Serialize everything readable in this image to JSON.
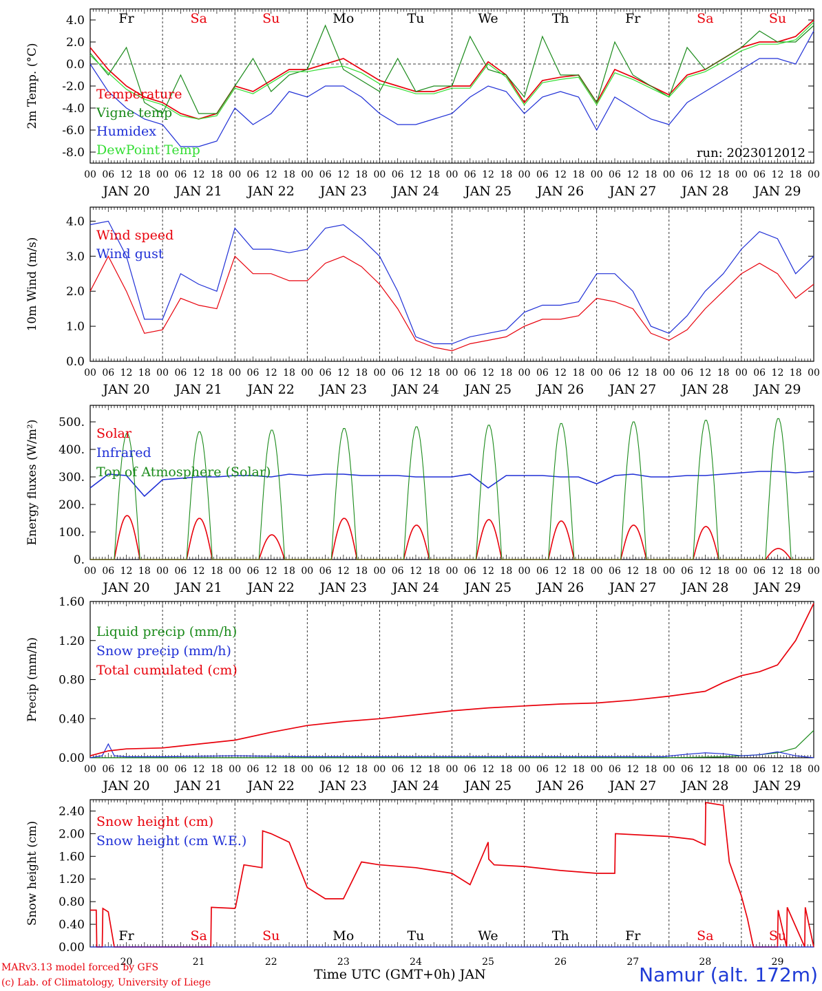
{
  "footer": {
    "model_line": "MARv3.13 model forced by GFS",
    "lab_line": "(c) Lab. of Climatology, University of Liege",
    "x_axis_label": "Time UTC (GMT+0h) JAN",
    "station": "Namur (alt. 172m)"
  },
  "colors": {
    "red": "#e8000b",
    "blue": "#1f2fd6",
    "green": "#1a8a1a",
    "lightgreen": "#33dd33",
    "sa_su": "#e8000b",
    "weekday": "#000000"
  },
  "chart_data": [
    {
      "type": "line",
      "ylabel": "2m Temp. (°C)",
      "y_ticks": [
        "-8.0",
        "-6.0",
        "-4.0",
        "-2.0",
        "0.0",
        "2.0",
        "4.0"
      ],
      "ylim": [
        -9.0,
        5.0
      ],
      "run_label": "run: 2023012012",
      "top_day_labels": [
        "Fr",
        "Sa",
        "Su",
        "Mo",
        "Tu",
        "We",
        "Th",
        "Fr",
        "Sa",
        "Su"
      ],
      "x_hour_ticks": [
        "00",
        "06",
        "12",
        "18"
      ],
      "x_date_labels": [
        "JAN 20",
        "JAN 21",
        "JAN 22",
        "JAN 23",
        "JAN 24",
        "JAN 25",
        "JAN 26",
        "JAN 27",
        "JAN 28",
        "JAN 29"
      ],
      "series": [
        {
          "name": "Temperature",
          "color": "#e8000b",
          "x": [
            0,
            6,
            12,
            18,
            24,
            30,
            36,
            42,
            48,
            54,
            60,
            66,
            72,
            78,
            84,
            90,
            96,
            102,
            108,
            114,
            120,
            126,
            132,
            138,
            144,
            150,
            156,
            162,
            168,
            174,
            180,
            186,
            192,
            198,
            204,
            210,
            216,
            222,
            228,
            234,
            240
          ],
          "values": [
            1.5,
            -0.5,
            -2.0,
            -3.0,
            -3.5,
            -4.5,
            -5.0,
            -4.5,
            -2.0,
            -2.5,
            -1.5,
            -0.5,
            -0.5,
            0.0,
            0.5,
            -0.5,
            -1.5,
            -2.0,
            -2.5,
            -2.5,
            -2.0,
            -2.0,
            0.2,
            -1.0,
            -3.5,
            -1.5,
            -1.2,
            -1.0,
            -3.5,
            -0.5,
            -1.2,
            -2.0,
            -2.8,
            -1.0,
            -0.5,
            0.5,
            1.5,
            2.0,
            2.0,
            2.5,
            4.0
          ]
        },
        {
          "name": "Vigne temp",
          "color": "#1a8a1a",
          "x": [
            0,
            6,
            12,
            18,
            24,
            30,
            36,
            42,
            48,
            54,
            60,
            66,
            72,
            78,
            84,
            90,
            96,
            102,
            108,
            114,
            120,
            126,
            132,
            138,
            144,
            150,
            156,
            162,
            168,
            174,
            180,
            186,
            192,
            198,
            204,
            210,
            216,
            222,
            228,
            234,
            240
          ],
          "values": [
            1.0,
            -1.0,
            1.5,
            -3.5,
            -4.5,
            -1.0,
            -4.5,
            -4.5,
            -2.0,
            0.5,
            -2.5,
            -1.0,
            -0.5,
            3.5,
            -0.5,
            -1.5,
            -2.5,
            0.5,
            -2.5,
            -2.0,
            -2.0,
            2.5,
            -0.5,
            -1.0,
            -3.0,
            2.5,
            -1.0,
            -1.0,
            -3.5,
            2.0,
            -1.0,
            -2.0,
            -3.0,
            1.5,
            -0.5,
            0.5,
            1.5,
            3.0,
            2.0,
            2.0,
            3.5
          ]
        },
        {
          "name": "Humidex",
          "color": "#1f2fd6",
          "x": [
            0,
            6,
            12,
            18,
            24,
            30,
            36,
            42,
            48,
            54,
            60,
            66,
            72,
            78,
            84,
            90,
            96,
            102,
            108,
            114,
            120,
            126,
            132,
            138,
            144,
            150,
            156,
            162,
            168,
            174,
            180,
            186,
            192,
            198,
            204,
            210,
            216,
            222,
            228,
            234,
            240
          ],
          "values": [
            0.0,
            -2.5,
            -4.0,
            -5.0,
            -5.5,
            -7.5,
            -7.5,
            -7.0,
            -4.0,
            -5.5,
            -4.5,
            -2.5,
            -3.0,
            -2.0,
            -2.0,
            -3.0,
            -4.5,
            -5.5,
            -5.5,
            -5.0,
            -4.5,
            -3.0,
            -2.0,
            -2.5,
            -4.5,
            -3.0,
            -2.5,
            -3.0,
            -6.0,
            -3.0,
            -4.0,
            -5.0,
            -5.5,
            -3.5,
            -2.5,
            -1.5,
            -0.5,
            0.5,
            0.5,
            0.0,
            3.0
          ]
        },
        {
          "name": "DewPoint Temp",
          "color": "#33dd33",
          "x": [
            0,
            6,
            12,
            18,
            24,
            30,
            36,
            42,
            48,
            54,
            60,
            66,
            72,
            78,
            84,
            90,
            96,
            102,
            108,
            114,
            120,
            126,
            132,
            138,
            144,
            150,
            156,
            162,
            168,
            174,
            180,
            186,
            192,
            198,
            204,
            210,
            216,
            222,
            228,
            234,
            240
          ],
          "values": [
            0.8,
            -0.8,
            -2.3,
            -3.2,
            -3.7,
            -4.7,
            -5.0,
            -4.7,
            -2.2,
            -2.7,
            -1.7,
            -0.7,
            -0.7,
            -0.4,
            -0.2,
            -0.8,
            -1.8,
            -2.2,
            -2.7,
            -2.7,
            -2.2,
            -2.2,
            0.0,
            -1.2,
            -3.7,
            -1.7,
            -1.4,
            -1.2,
            -3.7,
            -0.8,
            -1.4,
            -2.2,
            -3.0,
            -1.2,
            -0.7,
            0.2,
            1.2,
            1.8,
            1.8,
            2.2,
            3.8
          ]
        }
      ]
    },
    {
      "type": "line",
      "ylabel": "10m Wind (m/s)",
      "y_ticks": [
        "0.0",
        "1.0",
        "2.0",
        "3.0",
        "4.0"
      ],
      "ylim": [
        0.0,
        4.4
      ],
      "x_hour_ticks": [
        "00",
        "06",
        "12",
        "18"
      ],
      "x_date_labels": [
        "JAN 20",
        "JAN 21",
        "JAN 22",
        "JAN 23",
        "JAN 24",
        "JAN 25",
        "JAN 26",
        "JAN 27",
        "JAN 28",
        "JAN 29"
      ],
      "series": [
        {
          "name": "Wind speed",
          "color": "#e8000b",
          "x": [
            0,
            6,
            12,
            18,
            24,
            30,
            36,
            42,
            48,
            54,
            60,
            66,
            72,
            78,
            84,
            90,
            96,
            102,
            108,
            114,
            120,
            126,
            132,
            138,
            144,
            150,
            156,
            162,
            168,
            174,
            180,
            186,
            192,
            198,
            204,
            210,
            216,
            222,
            228,
            234,
            240
          ],
          "values": [
            2.0,
            3.0,
            2.0,
            0.8,
            0.9,
            1.8,
            1.6,
            1.5,
            3.0,
            2.5,
            2.5,
            2.3,
            2.3,
            2.8,
            3.0,
            2.7,
            2.2,
            1.5,
            0.6,
            0.4,
            0.3,
            0.5,
            0.6,
            0.7,
            1.0,
            1.2,
            1.2,
            1.3,
            1.8,
            1.7,
            1.5,
            0.8,
            0.6,
            0.9,
            1.5,
            2.0,
            2.5,
            2.8,
            2.5,
            1.8,
            2.2
          ]
        },
        {
          "name": "Wind gust",
          "color": "#1f2fd6",
          "x": [
            0,
            6,
            12,
            18,
            24,
            30,
            36,
            42,
            48,
            54,
            60,
            66,
            72,
            78,
            84,
            90,
            96,
            102,
            108,
            114,
            120,
            126,
            132,
            138,
            144,
            150,
            156,
            162,
            168,
            174,
            180,
            186,
            192,
            198,
            204,
            210,
            216,
            222,
            228,
            234,
            240
          ],
          "values": [
            3.9,
            4.0,
            3.0,
            1.2,
            1.2,
            2.5,
            2.2,
            2.0,
            3.8,
            3.2,
            3.2,
            3.1,
            3.2,
            3.8,
            3.9,
            3.5,
            3.0,
            2.0,
            0.7,
            0.5,
            0.5,
            0.7,
            0.8,
            0.9,
            1.4,
            1.6,
            1.6,
            1.7,
            2.5,
            2.5,
            2.0,
            1.0,
            0.8,
            1.3,
            2.0,
            2.5,
            3.2,
            3.7,
            3.5,
            2.5,
            3.0
          ]
        }
      ]
    },
    {
      "type": "line",
      "ylabel": "Energy fluxes (W/m²)",
      "y_ticks": [
        "0.",
        "100.",
        "200.",
        "300.",
        "400.",
        "500."
      ],
      "ylim": [
        0,
        560
      ],
      "x_hour_ticks": [
        "00",
        "06",
        "12",
        "18"
      ],
      "x_date_labels": [
        "JAN 20",
        "JAN 21",
        "JAN 22",
        "JAN 23",
        "JAN 24",
        "JAN 25",
        "JAN 26",
        "JAN 27",
        "JAN 28",
        "JAN 29"
      ],
      "daily_peaks": {
        "toa_solar": [
          460,
          466,
          472,
          478,
          484,
          490,
          496,
          502,
          508,
          514
        ],
        "solar": [
          160,
          150,
          90,
          150,
          125,
          145,
          140,
          125,
          120,
          40
        ]
      },
      "series": [
        {
          "name": "Solar",
          "color": "#e8000b"
        },
        {
          "name": "Infrared",
          "color": "#1f2fd6",
          "x": [
            0,
            6,
            12,
            18,
            24,
            30,
            36,
            42,
            48,
            54,
            60,
            66,
            72,
            78,
            84,
            90,
            96,
            102,
            108,
            114,
            120,
            126,
            132,
            138,
            144,
            150,
            156,
            162,
            168,
            174,
            180,
            186,
            192,
            198,
            204,
            210,
            216,
            222,
            228,
            234,
            240
          ],
          "values": [
            260,
            310,
            305,
            230,
            290,
            295,
            300,
            300,
            305,
            305,
            300,
            310,
            305,
            310,
            310,
            305,
            305,
            305,
            300,
            300,
            300,
            310,
            260,
            305,
            305,
            305,
            300,
            300,
            275,
            305,
            310,
            300,
            300,
            305,
            305,
            310,
            315,
            320,
            320,
            315,
            320
          ]
        },
        {
          "name": "Top of Atmosphere (Solar)",
          "color": "#1a8a1a"
        }
      ]
    },
    {
      "type": "line",
      "ylabel": "Precip (mm/h)",
      "y_ticks": [
        "0.00",
        "0.40",
        "0.80",
        "1.20",
        "1.60"
      ],
      "ylim": [
        0.0,
        1.6
      ],
      "x_hour_ticks": [
        "00",
        "06",
        "12",
        "18"
      ],
      "x_date_labels": [
        "JAN 20",
        "JAN 21",
        "JAN 22",
        "JAN 23",
        "JAN 24",
        "JAN 25",
        "JAN 26",
        "JAN 27",
        "JAN 28",
        "JAN 29"
      ],
      "series": [
        {
          "name": "Liquid precip (mm/h)",
          "color": "#1a8a1a",
          "x": [
            0,
            24,
            48,
            72,
            96,
            120,
            144,
            168,
            192,
            210,
            216,
            222,
            228,
            234,
            240
          ],
          "values": [
            0,
            0,
            0,
            0,
            0,
            0,
            0,
            0,
            0,
            0.01,
            0.02,
            0.03,
            0.05,
            0.1,
            0.28
          ]
        },
        {
          "name": "Snow precip (mm/h)",
          "color": "#1f2fd6",
          "x": [
            0,
            4,
            6,
            8,
            12,
            24,
            48,
            72,
            96,
            120,
            144,
            168,
            190,
            196,
            204,
            210,
            216,
            222,
            228,
            234,
            240
          ],
          "values": [
            0,
            0.02,
            0.14,
            0.02,
            0.01,
            0.01,
            0.02,
            0.01,
            0.01,
            0.01,
            0.01,
            0.01,
            0.01,
            0.03,
            0.05,
            0.04,
            0.02,
            0.03,
            0.06,
            0.02,
            0.0
          ]
        },
        {
          "name": "Total cumulated (cm)",
          "color": "#e8000b",
          "x": [
            0,
            6,
            12,
            24,
            36,
            48,
            60,
            72,
            84,
            96,
            108,
            120,
            132,
            144,
            156,
            168,
            180,
            192,
            204,
            210,
            216,
            222,
            228,
            234,
            240
          ],
          "values": [
            0.02,
            0.07,
            0.09,
            0.1,
            0.14,
            0.18,
            0.26,
            0.33,
            0.37,
            0.4,
            0.44,
            0.48,
            0.51,
            0.53,
            0.55,
            0.56,
            0.59,
            0.63,
            0.68,
            0.77,
            0.84,
            0.88,
            0.95,
            1.2,
            1.58
          ]
        }
      ]
    },
    {
      "type": "line",
      "ylabel": "Snow height (cm)",
      "y_ticks": [
        "0.00",
        "0.40",
        "0.80",
        "1.20",
        "1.60",
        "2.00",
        "2.40"
      ],
      "ylim": [
        0.0,
        2.6
      ],
      "x_date_labels": [
        "20",
        "21",
        "22",
        "23",
        "24",
        "25",
        "26",
        "27",
        "28",
        "29"
      ],
      "bottom_day_labels": [
        "Fr",
        "Sa",
        "Su",
        "Mo",
        "Tu",
        "We",
        "Th",
        "Fr",
        "Sa",
        "Su"
      ],
      "series": [
        {
          "name": "Snow height (cm)",
          "color": "#e8000b",
          "x": [
            0,
            2,
            2.2,
            4,
            4.2,
            6,
            8,
            8.2,
            10,
            12,
            12.2,
            18,
            24,
            24.2,
            40,
            40.2,
            48,
            48.2,
            51,
            57,
            57.2,
            60,
            66,
            72,
            78,
            84,
            90,
            96,
            96.2,
            108,
            114,
            120,
            126,
            132,
            132.2,
            134,
            144,
            156,
            168,
            174,
            174.2,
            192,
            200,
            204,
            204.2,
            210,
            212,
            216,
            218,
            220,
            220.2,
            228,
            228.2,
            231,
            231.2,
            237,
            237.2,
            240
          ],
          "values": [
            0.65,
            0.65,
            0,
            0,
            0.68,
            0.62,
            0,
            0,
            0,
            0,
            0,
            0,
            0,
            0,
            0,
            0.7,
            0.68,
            0.7,
            1.45,
            1.4,
            2.05,
            2.0,
            1.85,
            1.05,
            0.85,
            0.85,
            1.5,
            1.45,
            1.45,
            1.4,
            1.35,
            1.3,
            1.1,
            1.85,
            1.55,
            1.45,
            1.42,
            1.35,
            1.3,
            1.3,
            2.0,
            1.95,
            1.9,
            1.8,
            2.55,
            2.5,
            1.5,
            0.9,
            0.5,
            0,
            0,
            0,
            0.65,
            0,
            0.7,
            0,
            0.7,
            0
          ]
        },
        {
          "name": "Snow height (cm W.E.)",
          "color": "#1f2fd6",
          "x": [
            0,
            240
          ],
          "values": [
            0,
            0
          ]
        }
      ]
    }
  ]
}
